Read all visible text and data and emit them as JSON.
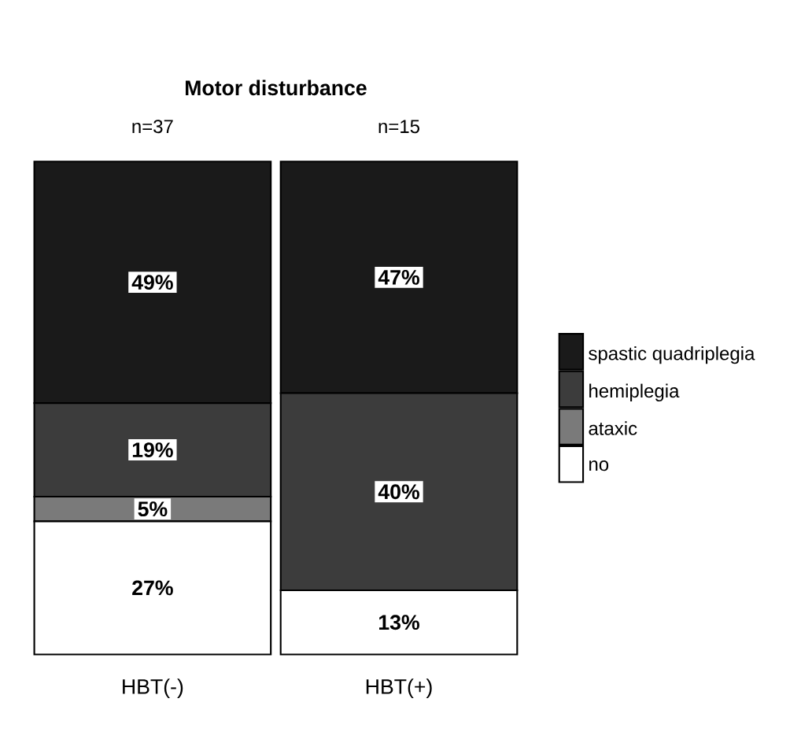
{
  "chart_data": {
    "type": "bar",
    "stacked": true,
    "title": "Motor disturbance",
    "categories": [
      "HBT(-)",
      "HBT(+)"
    ],
    "annotations": [
      "n=37",
      "n=15"
    ],
    "series": [
      {
        "name": "no",
        "color": "#ffffff",
        "values": [
          27,
          13
        ],
        "value_labels": [
          "27%",
          "13%"
        ]
      },
      {
        "name": "ataxic",
        "color": "#7a7a7a",
        "values": [
          5,
          0
        ],
        "value_labels": [
          "5%",
          null
        ]
      },
      {
        "name": "hemiplegia",
        "color": "#3c3c3c",
        "values": [
          19,
          40
        ],
        "value_labels": [
          "19%",
          "40%"
        ]
      },
      {
        "name": "spastic quadriplegia",
        "color": "#1a1a1a",
        "values": [
          49,
          47
        ],
        "value_labels": [
          "49%",
          "47%"
        ]
      }
    ],
    "legend": "right"
  }
}
